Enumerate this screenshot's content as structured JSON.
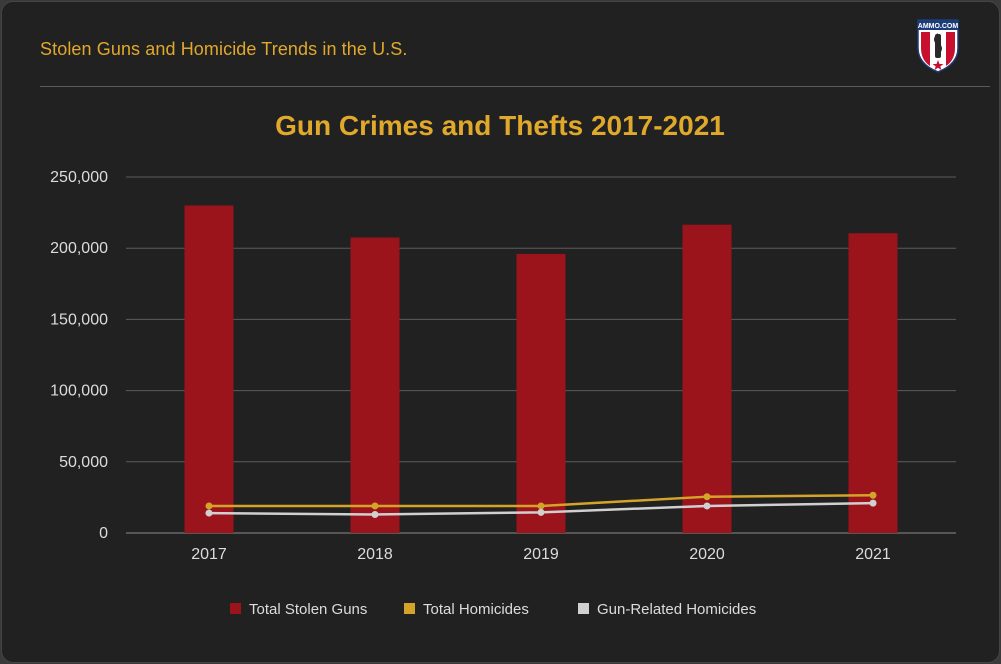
{
  "header": {
    "title": "Stolen Guns and Homicide Trends in the U.S.",
    "logo_text": "AMMO.COM",
    "logo_icon": "ammo-com-shield-logo"
  },
  "colors": {
    "background": "#212121",
    "accent": "#e0a92b",
    "bar": "#9b141b",
    "homicides_line": "#d4a429",
    "gun_homicides_line": "#d0d0d0",
    "grid": "#5c5c5c",
    "text": "#dcdcdc"
  },
  "chart_data": {
    "type": "bar",
    "title": "Gun Crimes and Thefts 2017-2021",
    "categories": [
      "2017",
      "2018",
      "2019",
      "2020",
      "2021"
    ],
    "ylim": [
      0,
      250000
    ],
    "yticks": [
      0,
      50000,
      100000,
      150000,
      200000,
      250000
    ],
    "ytick_labels": [
      "0",
      "50,000",
      "100,000",
      "150,000",
      "200,000",
      "250,000"
    ],
    "grid": true,
    "legend_position": "bottom",
    "series": [
      {
        "name": "Total Stolen Guns",
        "type": "bar",
        "color": "#9b141b",
        "values": [
          230000,
          207500,
          196000,
          216500,
          210500
        ]
      },
      {
        "name": "Total Homicides",
        "type": "line",
        "color": "#d4a429",
        "values": [
          19000,
          19000,
          19000,
          25500,
          26500
        ]
      },
      {
        "name": "Gun-Related Homicides",
        "type": "line",
        "color": "#d0d0d0",
        "values": [
          14000,
          13000,
          14500,
          19000,
          21000
        ]
      }
    ]
  }
}
